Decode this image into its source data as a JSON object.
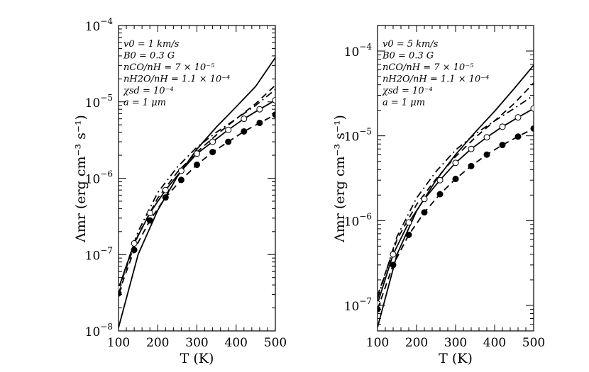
{
  "chart_data": [
    {
      "type": "line",
      "panel": "left",
      "xlabel": "T (K)",
      "ylabel": "Λmr (erg cm⁻³ s⁻¹)",
      "xlim": [
        100,
        500
      ],
      "ylim": [
        1e-08,
        0.0001
      ],
      "yscale": "log",
      "xticks": [
        "100",
        "200",
        "300",
        "400",
        "500"
      ],
      "yticks": [
        {
          "base": "10",
          "exp": "−8"
        },
        {
          "base": "10",
          "exp": "−7"
        },
        {
          "base": "10",
          "exp": "−6"
        },
        {
          "base": "10",
          "exp": "−5"
        },
        {
          "base": "10",
          "exp": "−4"
        }
      ],
      "annotations": [
        "v0 = 1 km/s",
        "B0 = 0.3 G",
        "nCO/nH = 7 × 10⁻⁵",
        "nH2O/nH = 1.1 × 10⁻⁴",
        "χsd = 10⁻⁴",
        "a = 1 μm"
      ],
      "series": [
        {
          "name": "solid",
          "style": "solid",
          "x": [
            100,
            150,
            200,
            250,
            300,
            350,
            400,
            450,
            500
          ],
          "y": [
            1.1e-08,
            1e-07,
            3.8e-07,
            1.05e-06,
            2.4e-06,
            4.7e-06,
            8.6e-06,
            1.6e-05,
            3.8e-05
          ]
        },
        {
          "name": "dashed",
          "style": "dashed",
          "x": [
            100,
            150,
            200,
            250,
            300,
            350,
            400,
            450,
            500
          ],
          "y": [
            3.5e-08,
            1.8e-07,
            5.5e-07,
            1.2e-06,
            2.2e-06,
            3.7e-06,
            6e-06,
            9.5e-06,
            1.65e-05
          ]
        },
        {
          "name": "dash-dot",
          "style": "dashdot",
          "x": [
            100,
            150,
            200,
            250,
            300,
            350,
            400,
            450,
            500
          ],
          "y": [
            3.6e-08,
            2e-07,
            6.5e-07,
            1.4e-06,
            2.55e-06,
            4e-06,
            6e-06,
            9e-06,
            1.45e-05
          ]
        },
        {
          "name": "solid-open-circles",
          "style": "solid",
          "marker": "open-circle",
          "x": [
            100,
            140,
            180,
            220,
            260,
            300,
            340,
            380,
            420,
            460,
            500
          ],
          "y": [
            3.6e-08,
            1.4e-07,
            3.5e-07,
            7e-07,
            1.25e-06,
            2.1e-06,
            3e-06,
            4.3e-06,
            6e-06,
            8e-06,
            1.05e-05
          ]
        },
        {
          "name": "dashed-filled-circles",
          "style": "dashed",
          "marker": "filled-circle",
          "x": [
            100,
            140,
            180,
            220,
            260,
            300,
            340,
            380,
            420,
            460,
            500
          ],
          "y": [
            3.1e-08,
            1.15e-07,
            2.8e-07,
            5.6e-07,
            9.5e-07,
            1.5e-06,
            2.2e-06,
            3e-06,
            4.1e-06,
            5.3e-06,
            6.8e-06
          ]
        }
      ]
    },
    {
      "type": "line",
      "panel": "right",
      "xlabel": "T (K)",
      "ylabel": "Λmr (erg cm⁻³ s⁻¹)",
      "xlim": [
        100,
        500
      ],
      "ylim": [
        5e-08,
        0.0002
      ],
      "yscale": "log",
      "xticks": [
        "100",
        "200",
        "300",
        "400",
        "500"
      ],
      "yticks": [
        {
          "base": "10",
          "exp": "−7"
        },
        {
          "base": "10",
          "exp": "−6"
        },
        {
          "base": "10",
          "exp": "−5"
        },
        {
          "base": "10",
          "exp": "−4"
        }
      ],
      "annotations": [
        "v0 = 5 km/s",
        "B0 = 0.3 G",
        "nCO/nH = 7 × 10⁻⁵",
        "nH2O/nH = 1.1 × 10⁻⁴",
        "χsd = 10⁻⁴",
        "a = 1 μm"
      ],
      "series": [
        {
          "name": "solid",
          "style": "solid",
          "x": [
            100,
            150,
            200,
            250,
            300,
            350,
            400,
            450,
            500
          ],
          "y": [
            5.5e-08,
            4e-07,
            1.3e-06,
            3e-06,
            6e-06,
            1.1e-05,
            1.95e-05,
            3.6e-05,
            6.8e-05
          ]
        },
        {
          "name": "dashed",
          "style": "dashed",
          "x": [
            100,
            150,
            200,
            250,
            300,
            350,
            400,
            450,
            500
          ],
          "y": [
            1.3e-07,
            6e-07,
            1.55e-06,
            3.1e-06,
            5.7e-06,
            9.5e-06,
            1.5e-05,
            2.4e-05,
            4.2e-05
          ]
        },
        {
          "name": "dash-dot",
          "style": "dashdot",
          "x": [
            100,
            150,
            200,
            250,
            300,
            350,
            400,
            450,
            500
          ],
          "y": [
            1.2e-07,
            6.5e-07,
            1.85e-06,
            3.8e-06,
            6.8e-06,
            1.05e-05,
            1.5e-05,
            2.1e-05,
            3e-05
          ]
        },
        {
          "name": "solid-open-circles",
          "style": "solid",
          "marker": "open-circle",
          "x": [
            100,
            140,
            180,
            220,
            260,
            300,
            340,
            380,
            420,
            460,
            500
          ],
          "y": [
            1.05e-07,
            4e-07,
            9.5e-07,
            1.8e-06,
            3e-06,
            4.8e-06,
            7e-06,
            9.6e-06,
            1.28e-05,
            1.65e-05,
            2.1e-05
          ]
        },
        {
          "name": "dashed-filled-circles",
          "style": "dashed",
          "marker": "filled-circle",
          "x": [
            100,
            140,
            180,
            220,
            260,
            300,
            340,
            380,
            420,
            460,
            500
          ],
          "y": [
            9e-08,
            3e-07,
            6.8e-07,
            1.25e-06,
            2.05e-06,
            3.1e-06,
            4.4e-06,
            6e-06,
            7.8e-06,
            9.8e-06,
            1.22e-05
          ]
        }
      ]
    }
  ]
}
